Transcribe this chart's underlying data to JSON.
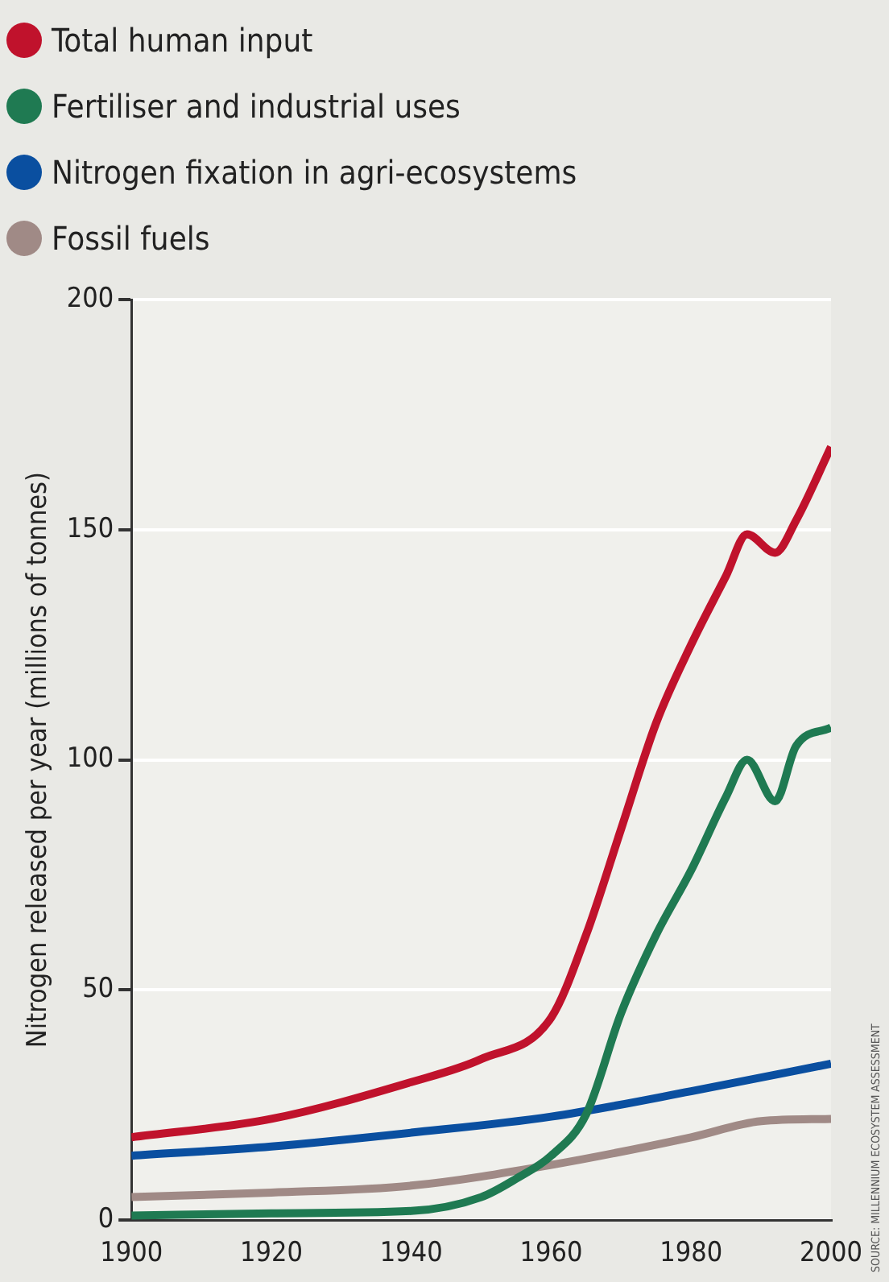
{
  "chart_data": {
    "type": "line",
    "ylabel": "Nitrogen released per year (millions of tonnes)",
    "xlim": [
      1900,
      2000
    ],
    "xticks": [
      1900,
      1920,
      1940,
      1960,
      1980,
      2000
    ],
    "ylim": [
      0,
      200
    ],
    "yticks": [
      0,
      50,
      100,
      150,
      200
    ],
    "grid": "y",
    "legend": "top left",
    "marker": "none",
    "line_style": "solid",
    "annotations": [
      "SOURCE: MILLENNIUM ECOSYSTEM ASSESSMENT"
    ],
    "series": [
      {
        "name": "Total human input",
        "color": "#c0122c",
        "x": [
          1900,
          1920,
          1940,
          1950,
          1960,
          1965,
          1970,
          1975,
          1980,
          1985,
          1988,
          1992,
          1995,
          2000
        ],
        "values": [
          18,
          22,
          30,
          35,
          44,
          62,
          85,
          108,
          125,
          140,
          149,
          145,
          152,
          168
        ]
      },
      {
        "name": "Fertiliser and industrial uses",
        "color": "#1f7a52",
        "x": [
          1900,
          1920,
          1940,
          1950,
          1955,
          1960,
          1965,
          1970,
          1975,
          1980,
          1985,
          1988,
          1992,
          1995,
          2000
        ],
        "values": [
          1,
          1.5,
          2,
          5,
          9,
          14,
          23,
          45,
          62,
          76,
          92,
          100,
          91,
          103,
          107
        ]
      },
      {
        "name": "Nitrogen fixation in agri-ecosystems",
        "color": "#0a4fa0",
        "x": [
          1900,
          1920,
          1940,
          1960,
          1980,
          2000
        ],
        "values": [
          14,
          16,
          19,
          22.5,
          28,
          34
        ]
      },
      {
        "name": "Fossil fuels",
        "color": "#a08a86",
        "x": [
          1900,
          1920,
          1940,
          1960,
          1980,
          1990,
          2000
        ],
        "values": [
          5,
          6,
          7.5,
          12,
          18,
          21.5,
          22
        ]
      }
    ]
  }
}
